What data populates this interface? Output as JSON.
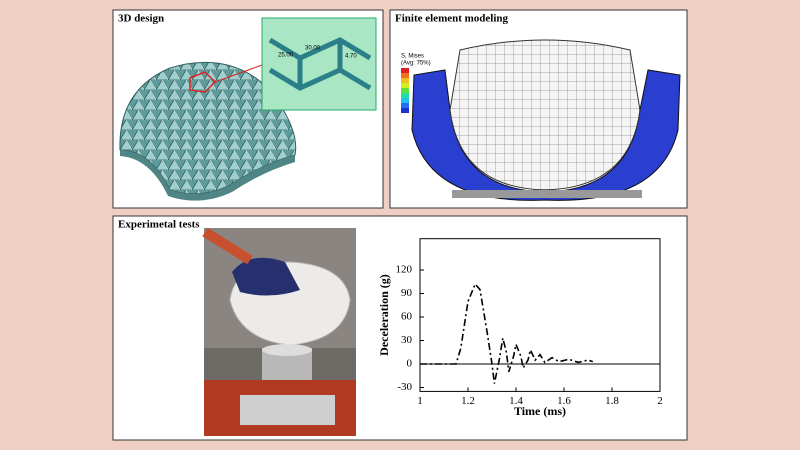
{
  "panels": [
    {
      "title": "3D design",
      "dimensions": [
        "25.00",
        "30.00",
        "4.70"
      ]
    },
    {
      "title": "Finite element modeling",
      "legend": [
        "S, Mises",
        "(Avg: 75%)"
      ]
    },
    {
      "title": "Experimetal tests"
    }
  ],
  "chart_data": {
    "type": "line",
    "xlabel": "Time (ms)",
    "ylabel": "Deceleration  (g)",
    "x": [
      1,
      1.1,
      1.15,
      1.17,
      1.2,
      1.23,
      1.25,
      1.28,
      1.3,
      1.31,
      1.33,
      1.345,
      1.36,
      1.37,
      1.39,
      1.4,
      1.42,
      1.43,
      1.45,
      1.46,
      1.48,
      1.5,
      1.52,
      1.55,
      1.58,
      1.62,
      1.66,
      1.7,
      1.72
    ],
    "series": [
      {
        "color": "#000000",
        "values": [
          0,
          0,
          0,
          20,
          80,
          102,
          95,
          40,
          0,
          -25,
          5,
          33,
          15,
          -10,
          10,
          25,
          10,
          -5,
          5,
          18,
          5,
          12,
          2,
          8,
          3,
          6,
          2,
          5,
          3
        ]
      }
    ],
    "xlim": [
      1,
      2
    ],
    "xticks": [
      1,
      1.2,
      1.4,
      1.6,
      1.8,
      2
    ],
    "ylim": [
      -35,
      160
    ],
    "yticks": [
      -30,
      0,
      30,
      60,
      90,
      120
    ]
  }
}
